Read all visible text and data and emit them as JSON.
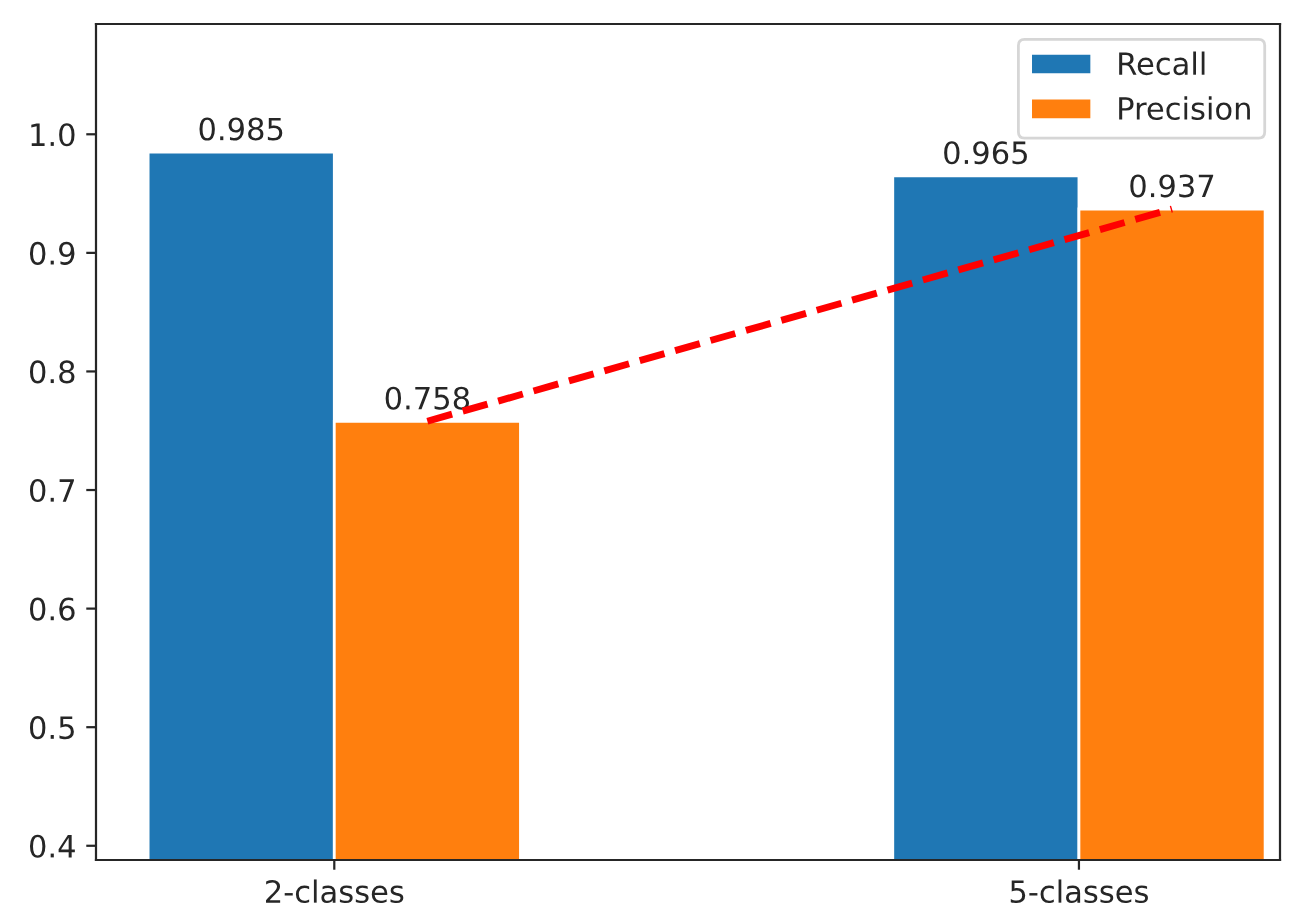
{
  "chart_data": {
    "type": "bar",
    "categories": [
      "2-classes",
      "5-classes"
    ],
    "series": [
      {
        "name": "Recall",
        "color": "#1f77b4",
        "values": [
          0.985,
          0.965
        ],
        "value_labels": [
          "0.985",
          "0.965"
        ]
      },
      {
        "name": "Precision",
        "color": "#ff7f0e",
        "values": [
          0.758,
          0.937
        ],
        "value_labels": [
          "0.758",
          "0.937"
        ]
      },
      {
        "type": "line",
        "color": "#ff0000",
        "line_style": "dashed",
        "values": [
          0.758,
          0.937
        ]
      }
    ],
    "ylim": [
      0.388,
      1.093
    ],
    "yticks": [
      0.4,
      0.5,
      0.6,
      0.7,
      0.8,
      0.9,
      {
        "value": 1.0,
        "label": "1.0"
      }
    ],
    "legend": "top right",
    "grid": false
  }
}
